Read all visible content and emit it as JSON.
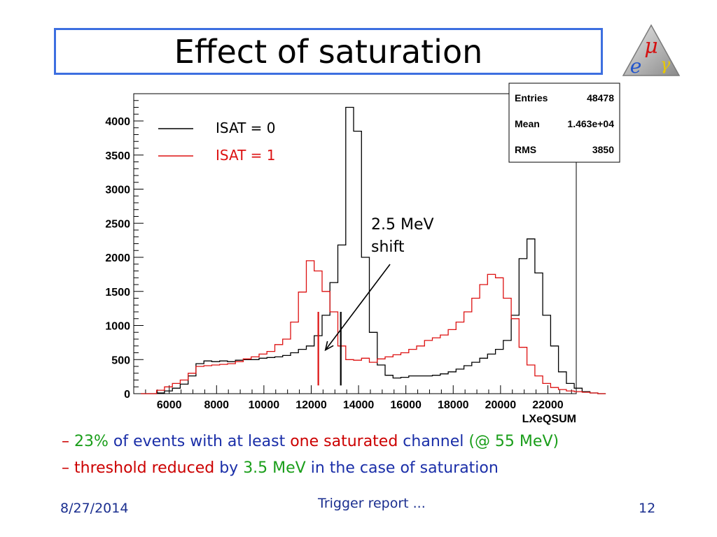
{
  "slide": {
    "title": "Effect of saturation",
    "footer": {
      "date": "8/27/2014",
      "center": "Trigger report ...",
      "page": "12"
    },
    "logo_letters": {
      "mu": "μ",
      "e": "e",
      "gamma": "γ"
    },
    "bullets": [
      [
        {
          "text": "– ",
          "color": "#cc0000"
        },
        {
          "text": "23%",
          "color": "#1a9e1a"
        },
        {
          "text": " of events with at least ",
          "color": "#1a2ea8"
        },
        {
          "text": "one saturated",
          "color": "#cc0000"
        },
        {
          "text": " channel ",
          "color": "#1a2ea8"
        },
        {
          "text": "(@ 55 MeV)",
          "color": "#1a9e1a"
        }
      ],
      [
        {
          "text": "– ",
          "color": "#cc0000"
        },
        {
          "text": "threshold reduced",
          "color": "#cc0000"
        },
        {
          "text": " by ",
          "color": "#1a2ea8"
        },
        {
          "text": "3.5 MeV",
          "color": "#1a9e1a"
        },
        {
          "text": " in the case of saturation",
          "color": "#1a2ea8"
        }
      ]
    ]
  },
  "colors": {
    "title_border": "#3d6fe0",
    "isat0": "#000000",
    "isat1": "#dd1111"
  },
  "chart_data": {
    "type": "histogram",
    "xlabel": "LXeQSUM",
    "xlim": [
      4500,
      23200
    ],
    "ylim": [
      0,
      4400
    ],
    "xticks": [
      6000,
      8000,
      10000,
      12000,
      14000,
      16000,
      18000,
      20000,
      22000
    ],
    "yticks": [
      0,
      500,
      1000,
      1500,
      2000,
      2500,
      3000,
      3500,
      4000
    ],
    "bin_width": 333,
    "stats": [
      {
        "label": "Entries",
        "value": "48478"
      },
      {
        "label": "Mean",
        "value": "1.463e+04"
      },
      {
        "label": "RMS",
        "value": "3850"
      }
    ],
    "legend": [
      {
        "name": "ISAT = 0",
        "color": "#000000"
      },
      {
        "name": "ISAT = 1",
        "color": "#dd1111"
      }
    ],
    "annotation": {
      "text": [
        "2.5 MeV",
        "shift"
      ],
      "arrow_to": {
        "x": 12600,
        "y": 640
      }
    },
    "markers": [
      {
        "x": 12300,
        "y": [
          120,
          1200
        ],
        "color": "#dd1111"
      },
      {
        "x": 13250,
        "y": [
          120,
          1200
        ],
        "color": "#000000"
      }
    ],
    "series": [
      {
        "name": "ISAT = 0",
        "color": "#000000",
        "x0": 4800,
        "values": [
          0,
          0,
          10,
          40,
          80,
          140,
          260,
          440,
          480,
          470,
          480,
          470,
          490,
          500,
          500,
          520,
          530,
          540,
          560,
          600,
          650,
          700,
          850,
          1150,
          1630,
          2180,
          4200,
          3850,
          2000,
          900,
          420,
          270,
          230,
          240,
          260,
          260,
          260,
          270,
          290,
          320,
          360,
          410,
          460,
          520,
          580,
          650,
          780,
          1150,
          1980,
          2270,
          1770,
          1150,
          700,
          320,
          150,
          80,
          30,
          10,
          0
        ]
      },
      {
        "name": "ISAT = 1",
        "color": "#dd1111",
        "x0": 4800,
        "values": [
          0,
          0,
          50,
          100,
          150,
          200,
          300,
          400,
          410,
          420,
          430,
          440,
          470,
          510,
          540,
          580,
          620,
          720,
          800,
          1050,
          1490,
          1950,
          1800,
          1500,
          1200,
          700,
          500,
          490,
          520,
          460,
          510,
          540,
          570,
          600,
          650,
          700,
          780,
          820,
          860,
          940,
          1050,
          1200,
          1400,
          1600,
          1750,
          1700,
          1400,
          1100,
          680,
          420,
          260,
          150,
          90,
          60,
          40,
          30,
          20,
          10,
          0
        ]
      }
    ]
  }
}
